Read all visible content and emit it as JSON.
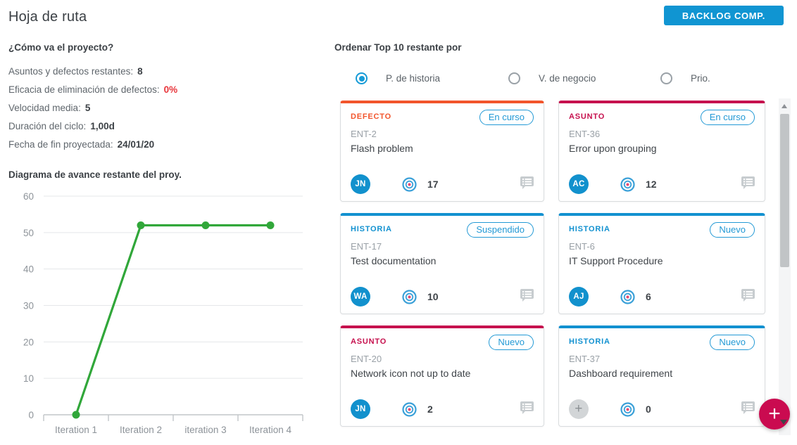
{
  "header": {
    "title": "Hoja de ruta",
    "backlog_button_label": "BACKLOG COMP."
  },
  "project_status": {
    "heading": "¿Cómo va el proyecto?",
    "stats": [
      {
        "label": "Asuntos y defectos restantes:",
        "value": "8",
        "highlight": false
      },
      {
        "label": "Eficacia de eliminación de defectos:",
        "value": "0%",
        "highlight": true
      },
      {
        "label": "Velocidad media:",
        "value": "5",
        "highlight": false
      },
      {
        "label": "Duración del ciclo:",
        "value": "1,00d",
        "highlight": false
      },
      {
        "label": "Fecha de fin proyectada:",
        "value": "24/01/20",
        "highlight": false
      }
    ]
  },
  "chart_data": {
    "type": "line",
    "title": "Diagrama de avance restante del proy.",
    "categories": [
      "Iteration 1",
      "Iteration 2",
      "iteration 3",
      "Iteration 4"
    ],
    "values": [
      0,
      52,
      52,
      52
    ],
    "xlabel": "",
    "ylabel": "",
    "ylim": [
      0,
      60
    ],
    "ytick_step": 10,
    "grid": true,
    "legend": "none",
    "line_color": "#31a73a"
  },
  "sort_section": {
    "heading": "Ordenar Top 10 restante por",
    "options": [
      {
        "label": "P. de historia",
        "selected": true
      },
      {
        "label": "V. de negocio",
        "selected": false
      },
      {
        "label": "Prio.",
        "selected": false
      }
    ]
  },
  "cards": [
    {
      "type": "DEFECTO",
      "accent": "#f2552c",
      "status": "En curso",
      "id": "ENT-2",
      "title": "Flash problem",
      "avatar": "JN",
      "unassigned": false,
      "points": "17"
    },
    {
      "type": "ASUNTO",
      "accent": "#c6114e",
      "status": "En curso",
      "id": "ENT-36",
      "title": "Error upon grouping",
      "avatar": "AC",
      "unassigned": false,
      "points": "12"
    },
    {
      "type": "HISTORIA",
      "accent": "#1291d0",
      "status": "Suspendido",
      "id": "ENT-17",
      "title": "Test documentation",
      "avatar": "WA",
      "unassigned": false,
      "points": "10"
    },
    {
      "type": "HISTORIA",
      "accent": "#1291d0",
      "status": "Nuevo",
      "id": "ENT-6",
      "title": "IT Support Procedure",
      "avatar": "AJ",
      "unassigned": false,
      "points": "6"
    },
    {
      "type": "ASUNTO",
      "accent": "#c6114e",
      "status": "Nuevo",
      "id": "ENT-20",
      "title": "Network icon not up to date",
      "avatar": "JN",
      "unassigned": false,
      "points": "2"
    },
    {
      "type": "HISTORIA",
      "accent": "#1291d0",
      "status": "Nuevo",
      "id": "ENT-37",
      "title": "Dashboard requirement",
      "avatar": "+",
      "unassigned": true,
      "points": "0"
    }
  ],
  "fab": {
    "icon": "+"
  },
  "colors": {
    "app_blue": "#1095d2",
    "badge_blue": "#2299d5",
    "defect_orange": "#f2552c",
    "issue_crimson": "#c6114e",
    "story_blue": "#1291d0",
    "fab_crimson": "#ca0b50",
    "chart_green": "#31a73a",
    "alert_red": "#e8363c",
    "target_ring": "#3aa0d8",
    "target_center": "#e8476f"
  }
}
